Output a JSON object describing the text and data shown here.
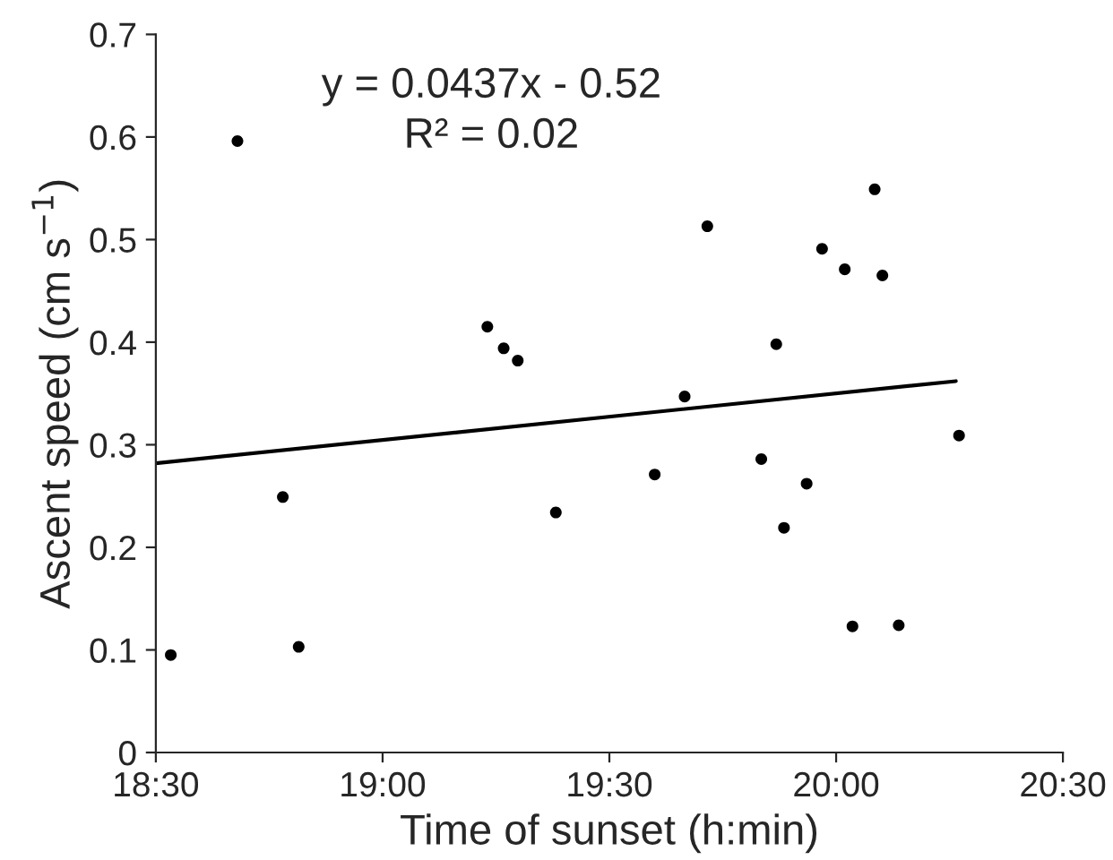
{
  "chart_data": {
    "type": "scatter",
    "xlabel": "Time of sunset (h:min)",
    "ylabel": "Ascent speed (cm s$^{−1}$)",
    "annotations": [
      "y = 0.0437x - 0.52",
      "R² = 0.02"
    ],
    "xlim": [
      18.5,
      20.5
    ],
    "xticks": [
      {
        "value": 18.5,
        "label": "18:30"
      },
      {
        "value": 19.0,
        "label": "19:00"
      },
      {
        "value": 19.5,
        "label": "19:30"
      },
      {
        "value": 20.0,
        "label": "20:00"
      },
      {
        "value": 20.5,
        "label": "20:30"
      }
    ],
    "ylim": [
      0,
      0.7
    ],
    "yticks": [
      0,
      0.1,
      0.2,
      0.3,
      0.4,
      0.5,
      0.6,
      0.7
    ],
    "grid": false,
    "legend": false,
    "series": [
      {
        "marker": "circle",
        "color": "#000000",
        "x": [
          18.533,
          18.68,
          18.78,
          18.815,
          19.231,
          19.267,
          19.298,
          19.382,
          19.6,
          19.666,
          19.716,
          19.835,
          19.868,
          19.885,
          19.935,
          19.969,
          20.019,
          20.036,
          20.085,
          20.102,
          20.138,
          20.271
        ],
        "values": [
          0.095,
          0.596,
          0.249,
          0.103,
          0.415,
          0.394,
          0.382,
          0.234,
          0.271,
          0.347,
          0.513,
          0.286,
          0.398,
          0.219,
          0.262,
          0.491,
          0.471,
          0.123,
          0.549,
          0.465,
          0.124,
          0.309
        ]
      },
      {
        "type": "line",
        "color": "#000000",
        "line_style": "solid",
        "x": [
          18.5,
          20.264
        ],
        "values": [
          0.282,
          0.362
        ]
      }
    ]
  }
}
